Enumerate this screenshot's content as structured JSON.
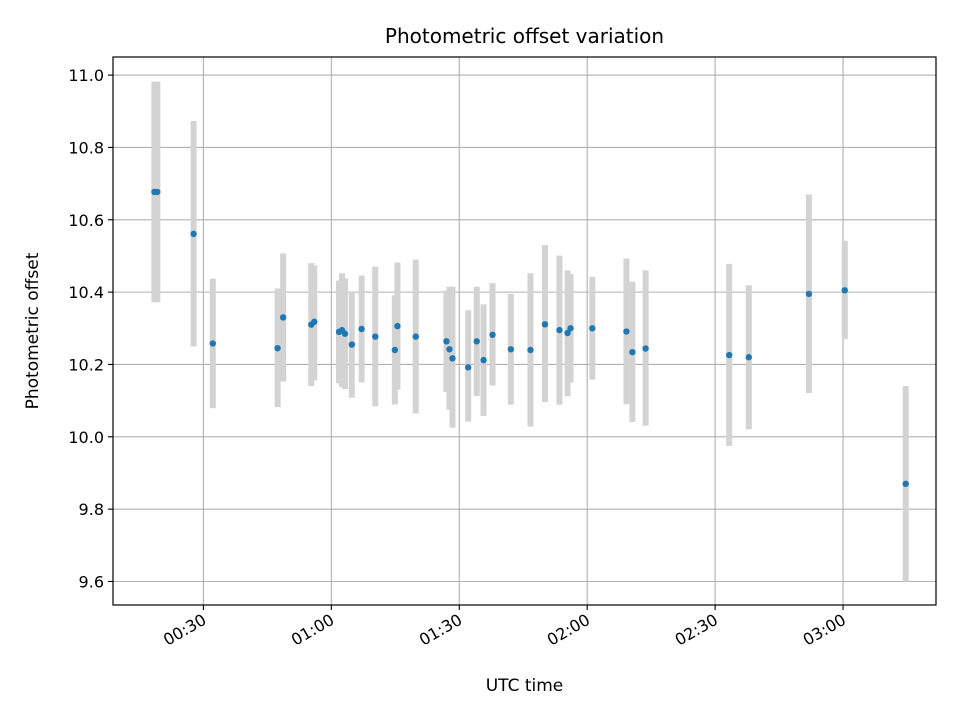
{
  "chart_data": {
    "type": "scatter",
    "title": "Photometric offset variation",
    "xlabel": "UTC time",
    "ylabel": "Photometric offset",
    "x_tick_labels": [
      "00:30",
      "01:00",
      "01:30",
      "02:00",
      "02:30",
      "03:00"
    ],
    "x_tick_minutes": [
      30,
      60,
      90,
      120,
      150,
      180
    ],
    "y_ticks": [
      9.6,
      9.8,
      10.0,
      10.2,
      10.4,
      10.6,
      10.8,
      11.0
    ],
    "y_tick_labels": [
      "9.6",
      "9.8",
      "10.0",
      "10.2",
      "10.4",
      "10.6",
      "10.8",
      "11.0"
    ],
    "xlim_minutes": [
      8.8,
      201.8
    ],
    "ylim": [
      9.535,
      11.05
    ],
    "grid": true,
    "point_color": "#1f77b4",
    "errorbar_color": "#d3d3d3",
    "points": [
      {
        "t": "00:18:30",
        "y": 10.677,
        "lo": 10.372,
        "hi": 10.982
      },
      {
        "t": "00:19:12",
        "y": 10.677,
        "lo": 10.372,
        "hi": 10.982
      },
      {
        "t": "00:27:42",
        "y": 10.561,
        "lo": 10.25,
        "hi": 10.873
      },
      {
        "t": "00:32:12",
        "y": 10.258,
        "lo": 10.079,
        "hi": 10.437
      },
      {
        "t": "00:47:24",
        "y": 10.245,
        "lo": 10.082,
        "hi": 10.41
      },
      {
        "t": "00:48:42",
        "y": 10.33,
        "lo": 10.153,
        "hi": 10.507
      },
      {
        "t": "00:55:18",
        "y": 10.31,
        "lo": 10.14,
        "hi": 10.48
      },
      {
        "t": "00:56:00",
        "y": 10.318,
        "lo": 10.156,
        "hi": 10.474
      },
      {
        "t": "01:01:48",
        "y": 10.29,
        "lo": 10.148,
        "hi": 10.432
      },
      {
        "t": "01:02:30",
        "y": 10.295,
        "lo": 10.138,
        "hi": 10.452
      },
      {
        "t": "01:03:12",
        "y": 10.285,
        "lo": 10.132,
        "hi": 10.438
      },
      {
        "t": "01:04:48",
        "y": 10.255,
        "lo": 10.108,
        "hi": 10.402
      },
      {
        "t": "01:07:06",
        "y": 10.298,
        "lo": 10.15,
        "hi": 10.446
      },
      {
        "t": "01:10:18",
        "y": 10.277,
        "lo": 10.084,
        "hi": 10.47
      },
      {
        "t": "01:14:54",
        "y": 10.24,
        "lo": 10.089,
        "hi": 10.391
      },
      {
        "t": "01:15:30",
        "y": 10.306,
        "lo": 10.13,
        "hi": 10.482
      },
      {
        "t": "01:19:48",
        "y": 10.277,
        "lo": 10.064,
        "hi": 10.49
      },
      {
        "t": "01:27:00",
        "y": 10.264,
        "lo": 10.124,
        "hi": 10.404
      },
      {
        "t": "01:27:42",
        "y": 10.242,
        "lo": 10.075,
        "hi": 10.415
      },
      {
        "t": "01:28:24",
        "y": 10.217,
        "lo": 10.025,
        "hi": 10.415
      },
      {
        "t": "01:32:06",
        "y": 10.192,
        "lo": 10.042,
        "hi": 10.35
      },
      {
        "t": "01:34:06",
        "y": 10.264,
        "lo": 10.113,
        "hi": 10.415
      },
      {
        "t": "01:35:42",
        "y": 10.212,
        "lo": 10.058,
        "hi": 10.366
      },
      {
        "t": "01:37:48",
        "y": 10.282,
        "lo": 10.142,
        "hi": 10.425
      },
      {
        "t": "01:42:06",
        "y": 10.242,
        "lo": 10.089,
        "hi": 10.395
      },
      {
        "t": "01:46:42",
        "y": 10.24,
        "lo": 10.028,
        "hi": 10.452
      },
      {
        "t": "01:50:06",
        "y": 10.311,
        "lo": 10.096,
        "hi": 10.53
      },
      {
        "t": "01:53:30",
        "y": 10.295,
        "lo": 10.089,
        "hi": 10.501
      },
      {
        "t": "01:55:24",
        "y": 10.287,
        "lo": 10.112,
        "hi": 10.46
      },
      {
        "t": "01:56:06",
        "y": 10.3,
        "lo": 10.15,
        "hi": 10.45
      },
      {
        "t": "02:01:12",
        "y": 10.3,
        "lo": 10.158,
        "hi": 10.442
      },
      {
        "t": "02:09:12",
        "y": 10.291,
        "lo": 10.09,
        "hi": 10.493
      },
      {
        "t": "02:10:36",
        "y": 10.234,
        "lo": 10.041,
        "hi": 10.429
      },
      {
        "t": "02:13:42",
        "y": 10.244,
        "lo": 10.031,
        "hi": 10.46
      },
      {
        "t": "02:33:18",
        "y": 10.226,
        "lo": 9.975,
        "hi": 10.478
      },
      {
        "t": "02:37:54",
        "y": 10.22,
        "lo": 10.021,
        "hi": 10.419
      },
      {
        "t": "02:52:00",
        "y": 10.395,
        "lo": 10.121,
        "hi": 10.67
      },
      {
        "t": "03:00:24",
        "y": 10.405,
        "lo": 10.27,
        "hi": 10.542
      },
      {
        "t": "03:14:42",
        "y": 9.87,
        "lo": 9.6,
        "hi": 10.14
      }
    ]
  }
}
